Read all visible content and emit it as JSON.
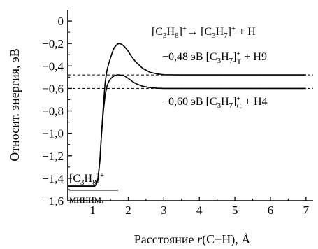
{
  "chart_data": {
    "type": "line",
    "title": "",
    "xlabel_main": "Расстояние ",
    "xlabel_r": "r",
    "xlabel_rest": "(C−H), Å",
    "ylabel": "Относит. энергия, эВ",
    "xlim": [
      0.3,
      7.2
    ],
    "ylim": [
      -1.6,
      0.1
    ],
    "xticks": [
      1,
      2,
      3,
      4,
      5,
      6,
      7
    ],
    "yticks": [
      0,
      -0.2,
      -0.4,
      -0.6,
      -0.8,
      -1.0,
      -1.2,
      -1.4,
      -1.6
    ],
    "ytick_labels": [
      "0",
      "−0,2",
      "−0,4",
      "−0,6",
      "−0,8",
      "−1,0",
      "−1,2",
      "−1,4",
      "−1,6"
    ],
    "grid": false,
    "series": [
      {
        "x": [
          0.3,
          1.05,
          1.1,
          1.15,
          1.2,
          1.25,
          1.3,
          1.35,
          1.4,
          1.45,
          1.5,
          1.55,
          1.6,
          1.65,
          1.7,
          1.75,
          1.8,
          1.85,
          1.9,
          2.0,
          2.1,
          2.2,
          2.4,
          2.6,
          2.8,
          3.0,
          3.5,
          4.0,
          5.0,
          6.0,
          7.0
        ],
        "y": [
          -1.47,
          -1.47,
          -1.46,
          -1.4,
          -1.25,
          -1.0,
          -0.75,
          -0.55,
          -0.44,
          -0.38,
          -0.33,
          -0.28,
          -0.24,
          -0.22,
          -0.205,
          -0.2,
          -0.205,
          -0.215,
          -0.23,
          -0.27,
          -0.32,
          -0.36,
          -0.42,
          -0.455,
          -0.47,
          -0.478,
          -0.48,
          -0.48,
          -0.48,
          -0.48,
          -0.48
        ]
      },
      {
        "x": [
          0.3,
          1.05,
          1.1,
          1.15,
          1.2,
          1.25,
          1.3,
          1.35,
          1.4,
          1.45,
          1.5,
          1.55,
          1.6,
          1.65,
          1.7,
          1.75,
          1.8,
          1.9,
          2.0,
          2.1,
          2.2,
          2.4,
          2.6,
          2.8,
          3.0,
          3.5,
          4.0,
          5.0,
          6.0,
          7.0
        ],
        "y": [
          -1.47,
          -1.47,
          -1.46,
          -1.4,
          -1.25,
          -1.0,
          -0.8,
          -0.66,
          -0.58,
          -0.54,
          -0.515,
          -0.5,
          -0.49,
          -0.482,
          -0.48,
          -0.48,
          -0.482,
          -0.49,
          -0.51,
          -0.535,
          -0.555,
          -0.58,
          -0.592,
          -0.598,
          -0.6,
          -0.6,
          -0.6,
          -0.6,
          -0.6,
          -0.6
        ]
      }
    ],
    "reference_lines": [
      -0.48,
      -0.6
    ],
    "annotations": {
      "reaction": {
        "b1": "[C",
        "s1": "3",
        "b2": "H",
        "s2": "8",
        "b3": "]",
        "sup1": "+",
        "arrow": "→",
        "b4": " [C",
        "s3": "3",
        "b5": "H",
        "s4": "7",
        "b6": "]",
        "sup2": "+",
        "b7": " + H"
      },
      "upper": {
        "pre": "−0,48 эВ [C",
        "s1": "3",
        "b1": "H",
        "s2": "7",
        "b2": "]",
        "sup": "+",
        "sub": "T",
        "post": " + H9"
      },
      "lower": {
        "pre": "−0,60 эВ [C",
        "s1": "3",
        "b1": "H",
        "s2": "7",
        "b2": "]",
        "sup": "+",
        "sub": "C",
        "post": " + H4"
      },
      "minimum": {
        "b1": "[C",
        "s1": "3",
        "b2": "H",
        "s2": "8",
        "b3": "]",
        "sup": "+",
        "line2": "миним."
      }
    }
  }
}
